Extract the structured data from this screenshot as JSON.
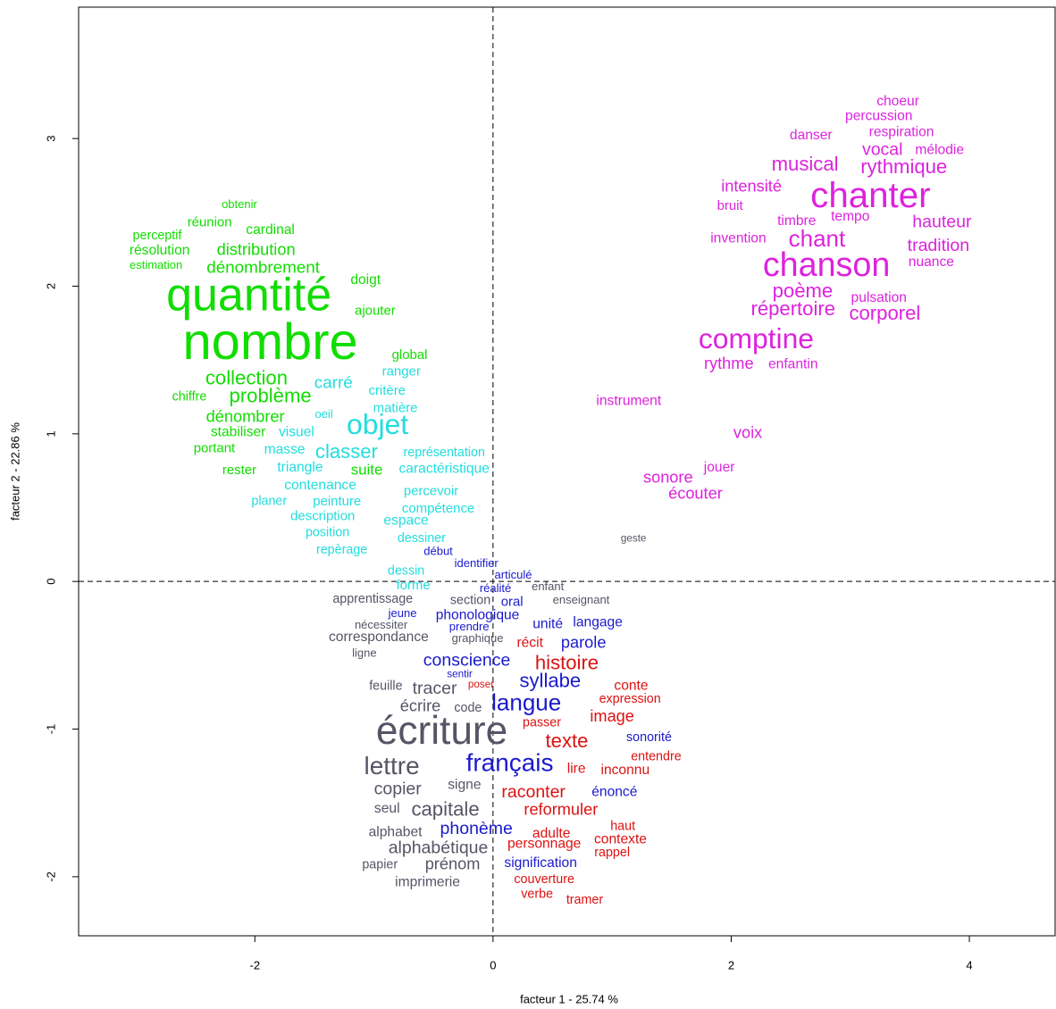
{
  "chart_data": {
    "type": "text-scatter",
    "xlabel": "facteur 1 - 25.74 %",
    "ylabel": "facteur 2 - 22.86 %",
    "xlim": [
      -3.48,
      4.72
    ],
    "ylim": [
      -2.4,
      3.89
    ],
    "xticks": [
      -2,
      0,
      2,
      4
    ],
    "yticks": [
      -2,
      -1,
      0,
      1,
      2,
      3
    ],
    "series": [
      {
        "color": "#11dd00",
        "labels": [
          "obtenir",
          "réunion",
          "cardinal",
          "perceptif",
          "résolution",
          "distribution",
          "estimation",
          "dénombrement",
          "doigt",
          "quantité",
          "ajouter",
          "nombre",
          "global",
          "collection",
          "chiffre",
          "problème",
          "dénombrer",
          "stabiliser",
          "portant",
          "rester",
          "suite"
        ],
        "x": [
          -2.13,
          -2.38,
          -1.87,
          -2.82,
          -2.8,
          -1.99,
          -2.83,
          -1.93,
          -1.07,
          -2.05,
          -0.99,
          -1.87,
          -0.7,
          -2.07,
          -2.55,
          -1.87,
          -2.08,
          -2.14,
          -2.34,
          -2.13,
          -1.06
        ],
        "values": [
          2.55,
          2.43,
          2.38,
          2.34,
          2.24,
          2.24,
          2.14,
          2.12,
          2.04,
          1.92,
          1.83,
          1.6,
          1.53,
          1.37,
          1.25,
          1.25,
          1.11,
          1.01,
          0.9,
          0.75,
          0.75
        ],
        "sizes": [
          1.0,
          1.15,
          1.2,
          1.1,
          1.2,
          1.4,
          1.0,
          1.45,
          1.2,
          4.0,
          1.15,
          4.45,
          1.15,
          1.7,
          1.1,
          1.7,
          1.4,
          1.2,
          1.15,
          1.15,
          1.3
        ]
      },
      {
        "color": "#22dddd",
        "labels": [
          "ranger",
          "carré",
          "critère",
          "matière",
          "oeil",
          "objet",
          "visuel",
          "masse",
          "classer",
          "représentation",
          "triangle",
          "caractéristique",
          "contenance",
          "percevoir",
          "planer",
          "peinture",
          "compétence",
          "description",
          "espace",
          "position",
          "dessiner",
          "repèrage",
          "dessin",
          "forme"
        ],
        "x": [
          -0.77,
          -1.34,
          -0.89,
          -0.82,
          -1.42,
          -0.97,
          -1.65,
          -1.75,
          -1.23,
          -0.41,
          -1.62,
          -0.41,
          -1.45,
          -0.52,
          -1.88,
          -1.31,
          -0.46,
          -1.43,
          -0.73,
          -1.39,
          -0.6,
          -1.27,
          -0.73,
          -0.67
        ],
        "values": [
          1.42,
          1.34,
          1.29,
          1.17,
          1.13,
          1.05,
          1.01,
          0.89,
          0.87,
          0.87,
          0.77,
          0.76,
          0.65,
          0.61,
          0.54,
          0.54,
          0.49,
          0.44,
          0.41,
          0.33,
          0.29,
          0.21,
          0.07,
          -0.03
        ],
        "sizes": [
          1.15,
          1.45,
          1.15,
          1.15,
          1.0,
          2.45,
          1.2,
          1.2,
          1.7,
          1.1,
          1.2,
          1.2,
          1.2,
          1.15,
          1.1,
          1.15,
          1.15,
          1.15,
          1.2,
          1.1,
          1.1,
          1.1,
          1.1,
          1.15
        ]
      },
      {
        "color": "#dd22dd",
        "labels": [
          "choeur",
          "percussion",
          "respiration",
          "danser",
          "vocal",
          "mélodie",
          "musical",
          "rythmique",
          "intensité",
          "chanter",
          "bruit",
          "tempo",
          "timbre",
          "hauteur",
          "invention",
          "chant",
          "tradition",
          "chanson",
          "nuance",
          "poème",
          "pulsation",
          "répertoire",
          "corporel",
          "comptine",
          "rythme",
          "enfantin",
          "instrument",
          "voix",
          "jouer",
          "sonore",
          "écouter"
        ],
        "x": [
          3.4,
          3.24,
          3.43,
          2.67,
          3.27,
          3.75,
          2.62,
          3.45,
          2.17,
          3.17,
          1.99,
          3.0,
          2.55,
          3.77,
          2.06,
          2.72,
          3.74,
          2.8,
          3.68,
          2.6,
          3.24,
          2.52,
          3.29,
          2.21,
          1.98,
          2.52,
          1.14,
          2.14,
          1.9,
          1.47,
          1.7
        ],
        "values": [
          3.25,
          3.15,
          3.04,
          3.02,
          2.92,
          2.92,
          2.82,
          2.8,
          2.67,
          2.6,
          2.54,
          2.47,
          2.44,
          2.43,
          2.32,
          2.31,
          2.27,
          2.13,
          2.16,
          1.96,
          1.92,
          1.84,
          1.81,
          1.63,
          1.47,
          1.47,
          1.22,
          1.0,
          0.77,
          0.7,
          0.59
        ],
        "sizes": [
          1.2,
          1.2,
          1.2,
          1.2,
          1.5,
          1.2,
          1.7,
          1.7,
          1.4,
          3.1,
          1.15,
          1.2,
          1.2,
          1.5,
          1.2,
          2.0,
          1.5,
          2.9,
          1.2,
          1.7,
          1.2,
          1.7,
          1.7,
          2.45,
          1.4,
          1.2,
          1.2,
          1.4,
          1.2,
          1.4,
          1.4
        ]
      },
      {
        "color": "#555566",
        "labels": [
          "geste",
          "enfant",
          "apprentissage",
          "section",
          "enseignant",
          "nécessiter",
          "correspondance",
          "graphique",
          "ligne",
          "feuille",
          "tracer",
          "écrire",
          "code",
          "écriture",
          "lettre",
          "copier",
          "signe",
          "seul",
          "capitale",
          "alphabet",
          "alphabétique",
          "papier",
          "prénom",
          "imprimerie"
        ],
        "x": [
          1.18,
          0.46,
          -1.01,
          -0.19,
          0.74,
          -0.94,
          -0.96,
          -0.13,
          -1.08,
          -0.9,
          -0.49,
          -0.61,
          -0.21,
          -0.43,
          -0.85,
          -0.8,
          -0.24,
          -0.89,
          -0.4,
          -0.82,
          -0.46,
          -0.95,
          -0.34,
          -0.55
        ],
        "values": [
          0.29,
          -0.04,
          -0.12,
          -0.13,
          -0.13,
          -0.3,
          -0.38,
          -0.39,
          -0.49,
          -0.71,
          -0.73,
          -0.85,
          -0.86,
          -1.03,
          -1.26,
          -1.41,
          -1.38,
          -1.54,
          -1.55,
          -1.7,
          -1.81,
          -1.92,
          -1.92,
          -2.04
        ],
        "sizes": [
          0.9,
          1.0,
          1.1,
          1.1,
          1.0,
          1.0,
          1.2,
          1.0,
          1.0,
          1.1,
          1.5,
          1.4,
          1.1,
          3.4,
          2.15,
          1.5,
          1.2,
          1.2,
          1.7,
          1.2,
          1.5,
          1.1,
          1.4,
          1.2
        ]
      },
      {
        "color": "#1a1acc",
        "labels": [
          "début",
          "identifier",
          "articulé",
          "réalité",
          "oral",
          "jeune",
          "phonologique",
          "prendre",
          "unité",
          "langage",
          "parole",
          "conscience",
          "sentir",
          "syllabe",
          "langue",
          "sonorité",
          "français",
          "énoncé",
          "phonème",
          "signification"
        ],
        "x": [
          -0.46,
          -0.14,
          0.17,
          0.02,
          0.16,
          -0.76,
          -0.13,
          -0.2,
          0.46,
          0.88,
          0.76,
          -0.22,
          -0.28,
          0.48,
          0.28,
          1.31,
          0.14,
          1.02,
          -0.14,
          0.4
        ],
        "values": [
          0.2,
          0.12,
          0.04,
          -0.05,
          -0.14,
          -0.22,
          -0.23,
          -0.31,
          -0.29,
          -0.28,
          -0.42,
          -0.54,
          -0.63,
          -0.68,
          -0.83,
          -1.06,
          -1.24,
          -1.43,
          -1.68,
          -1.91
        ],
        "sizes": [
          1.0,
          1.0,
          1.0,
          1.0,
          1.15,
          1.0,
          1.2,
          1.0,
          1.2,
          1.2,
          1.4,
          1.5,
          0.9,
          1.7,
          2.0,
          1.1,
          2.15,
          1.2,
          1.5,
          1.2
        ]
      },
      {
        "color": "#dd1111",
        "labels": [
          "récit",
          "histoire",
          "poser",
          "conte",
          "expression",
          "passer",
          "image",
          "texte",
          "entendre",
          "lire",
          "inconnu",
          "raconter",
          "reformuler",
          "haut",
          "adulte",
          "contexte",
          "personnage",
          "rappel",
          "couverture",
          "verbe",
          "tramer"
        ],
        "x": [
          0.31,
          0.62,
          -0.1,
          1.16,
          1.15,
          0.41,
          1.0,
          0.62,
          1.37,
          0.7,
          1.11,
          0.34,
          0.57,
          1.09,
          0.49,
          1.07,
          0.43,
          1.0,
          0.43,
          0.37,
          0.77
        ],
        "values": [
          -0.42,
          -0.56,
          -0.7,
          -0.71,
          -0.8,
          -0.96,
          -0.92,
          -1.09,
          -1.19,
          -1.27,
          -1.28,
          -1.43,
          -1.55,
          -1.66,
          -1.71,
          -1.75,
          -1.78,
          -1.84,
          -2.02,
          -2.12,
          -2.16
        ],
        "sizes": [
          1.2,
          1.7,
          0.9,
          1.2,
          1.1,
          1.1,
          1.4,
          1.7,
          1.1,
          1.2,
          1.2,
          1.5,
          1.4,
          1.1,
          1.2,
          1.2,
          1.2,
          1.1,
          1.1,
          1.1,
          1.1
        ]
      }
    ]
  }
}
